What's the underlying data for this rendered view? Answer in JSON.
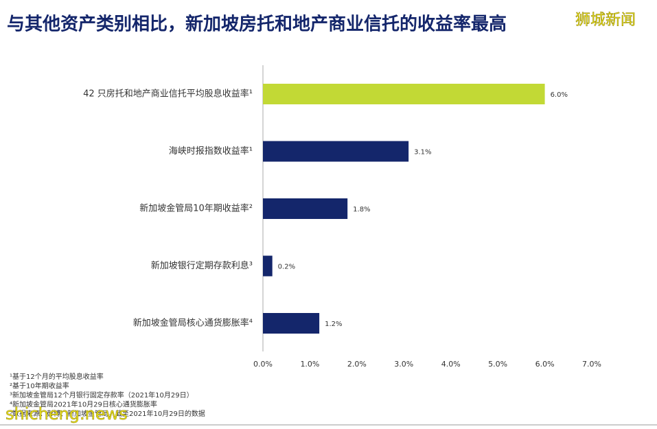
{
  "chart_data": {
    "type": "hbar",
    "title": "与其他资产类别相比，新加坡房托和地产商业信托的收益率最高",
    "categories": [
      "42 只房托和地产商业信托平均股息收益率¹",
      "海峡时报指数收益率¹",
      "新加坡金管局10年期收益率²",
      "新加坡银行定期存款利息³",
      "新加坡金管局核心通货膨胀率⁴"
    ],
    "values": [
      6.0,
      3.1,
      1.8,
      0.2,
      1.2
    ],
    "value_labels": [
      "6.0%",
      "3.1%",
      "1.8%",
      "0.2%",
      "1.2%"
    ],
    "colors": [
      "#c2d935",
      "#14266b",
      "#14266b",
      "#14266b",
      "#14266b"
    ],
    "xlim": [
      0,
      7
    ],
    "xticks": [
      {
        "value": 0,
        "label": "0.0%"
      },
      {
        "value": 1,
        "label": "1.0%"
      },
      {
        "value": 2,
        "label": "2.0%"
      },
      {
        "value": 3,
        "label": "3.0%"
      },
      {
        "value": 4,
        "label": "4.0%"
      },
      {
        "value": 5,
        "label": "5.0%"
      },
      {
        "value": 6,
        "label": "6.0%"
      },
      {
        "value": 7,
        "label": "7.0%"
      }
    ],
    "notes": [
      "¹基于12个月的平均股息收益率",
      "²基于10年期收益率",
      "³新加坡金管局12个月银行固定存款率（2021年10月29日）",
      "⁴新加坡金管局2021年10月29日核心通货膨胀率",
      "⁵数据来源：彭博、新加坡金管局，截至2021年10月29日的数据"
    ]
  },
  "watermarks": [
    "狮城新闻",
    "shicheng.news"
  ]
}
